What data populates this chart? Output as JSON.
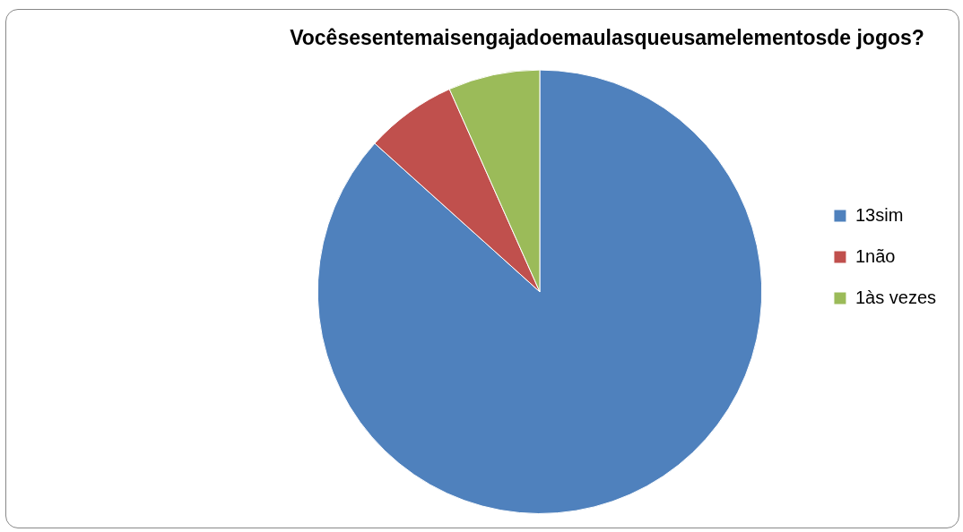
{
  "chart_data": {
    "type": "pie",
    "title": "Vocêsesentemaisengajadoemaulasqueusamelementosde jogos?",
    "categories": [
      "13sim",
      "1não",
      "1às vezes"
    ],
    "values": [
      13,
      1,
      1
    ],
    "colors": [
      "#4f81bd",
      "#c0504d",
      "#9bbb59"
    ],
    "legend": "right"
  }
}
